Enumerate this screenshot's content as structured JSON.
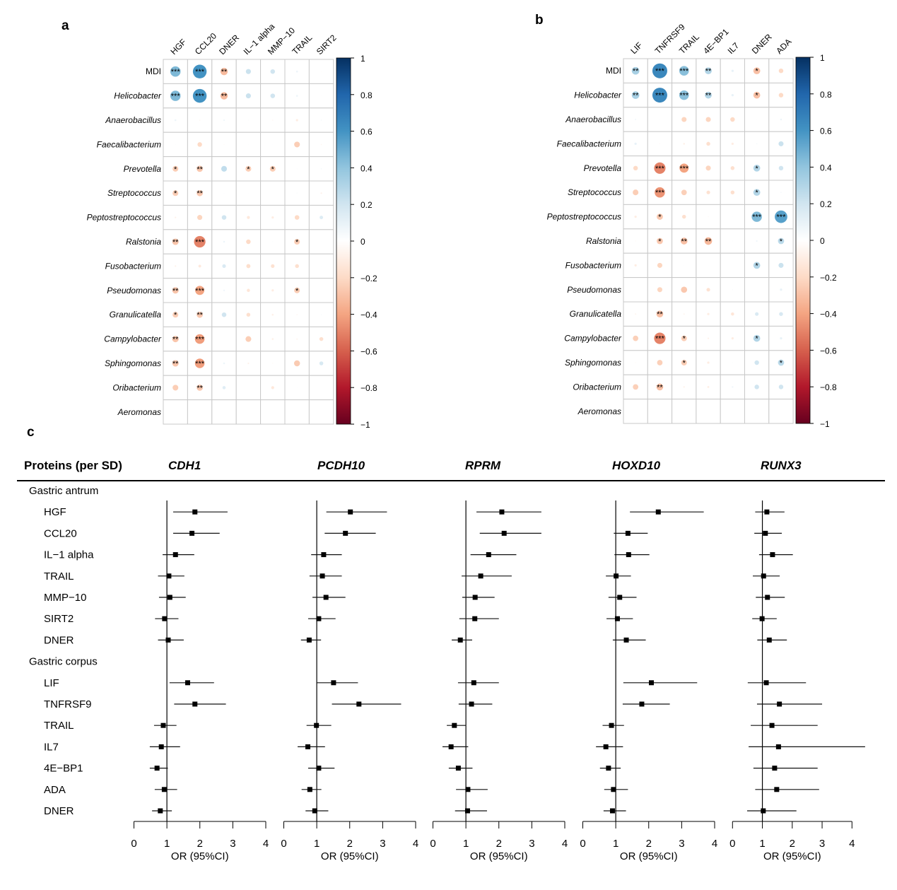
{
  "panel_labels": {
    "a": "a",
    "b": "b",
    "c": "c"
  },
  "chart_data": [
    {
      "type": "heatmap",
      "panel": "a",
      "style": "corrplot-circle",
      "columns": [
        "HGF",
        "CCL20",
        "DNER",
        "IL−1 alpha",
        "MMP−10",
        "TRAIL",
        "SIRT2"
      ],
      "rows": [
        "MDI",
        "Helicobacter",
        "Anaerobacillus",
        "Faecalibacterium",
        "Prevotella",
        "Streptococcus",
        "Peptostreptococcus",
        "Ralstonia",
        "Fusobacterium",
        "Pseudomonas",
        "Granulicatella",
        "Campylobacter",
        "Sphingomonas",
        "Oribacterium",
        "Aeromonas"
      ],
      "italic_rows": [
        false,
        true,
        true,
        true,
        true,
        true,
        true,
        true,
        true,
        true,
        true,
        true,
        true,
        true,
        true
      ],
      "values": [
        [
          0.45,
          0.6,
          -0.32,
          0.22,
          0.2,
          0.08,
          -0.03
        ],
        [
          0.45,
          0.6,
          -0.32,
          0.22,
          0.2,
          0.08,
          -0.02
        ],
        [
          0.08,
          -0.05,
          0.07,
          0.03,
          -0.05,
          -0.1,
          0.05
        ],
        [
          0.03,
          -0.2,
          -0.04,
          0.03,
          0.02,
          -0.25,
          -0.05
        ],
        [
          -0.25,
          -0.27,
          0.25,
          -0.25,
          -0.25,
          0.03,
          0.05
        ],
        [
          -0.25,
          -0.27,
          0.02,
          0.02,
          0.0,
          0.04,
          -0.07
        ],
        [
          -0.07,
          -0.22,
          0.2,
          -0.13,
          -0.1,
          -0.2,
          0.15
        ],
        [
          -0.28,
          -0.5,
          0.08,
          -0.2,
          0.03,
          -0.25,
          0.02
        ],
        [
          -0.07,
          -0.12,
          0.16,
          -0.18,
          -0.16,
          -0.17,
          0.02
        ],
        [
          -0.28,
          -0.4,
          0.07,
          -0.14,
          -0.1,
          -0.25,
          0.0
        ],
        [
          -0.25,
          -0.27,
          0.2,
          -0.17,
          -0.08,
          -0.05,
          0.04
        ],
        [
          -0.28,
          -0.42,
          0.01,
          -0.25,
          -0.08,
          -0.06,
          -0.17
        ],
        [
          -0.28,
          -0.42,
          0.08,
          -0.07,
          -0.04,
          -0.26,
          0.17
        ],
        [
          -0.25,
          -0.27,
          0.14,
          0.0,
          -0.13,
          0.02,
          0.01
        ],
        [
          0,
          0,
          0,
          0,
          0,
          0,
          0
        ]
      ],
      "significance": [
        [
          "***",
          "***",
          "**",
          "",
          "",
          "",
          ""
        ],
        [
          "***",
          "***",
          "**",
          "",
          "",
          "",
          ""
        ],
        [
          "",
          "",
          "",
          "",
          "",
          "",
          ""
        ],
        [
          "",
          "",
          "",
          "",
          "",
          "",
          ""
        ],
        [
          "*",
          "**",
          "",
          "*",
          "*",
          "",
          ""
        ],
        [
          "*",
          "**",
          "",
          "",
          "",
          "",
          ""
        ],
        [
          "",
          "",
          "",
          "",
          "",
          "",
          ""
        ],
        [
          "**",
          "***",
          "",
          "",
          "",
          "*",
          ""
        ],
        [
          "",
          "",
          "",
          "",
          "",
          "",
          ""
        ],
        [
          "**",
          "***",
          "",
          "",
          "",
          "*",
          ""
        ],
        [
          "*",
          "**",
          "",
          "",
          "",
          "",
          ""
        ],
        [
          "**",
          "***",
          "",
          "",
          "",
          "",
          ""
        ],
        [
          "**",
          "***",
          "",
          "",
          "",
          "",
          ""
        ],
        [
          "",
          "**",
          "",
          "",
          "",
          "",
          ""
        ],
        [
          "",
          "",
          "",
          "",
          "",
          "",
          ""
        ]
      ],
      "colorbar": {
        "range": [
          -1,
          1
        ],
        "ticks": [
          "1",
          "0.8",
          "0.6",
          "0.4",
          "0.2",
          "0",
          "−0.2",
          "−0.4",
          "−0.6",
          "−0.8",
          "−1"
        ],
        "tick_values": [
          1,
          0.8,
          0.6,
          0.4,
          0.2,
          0,
          -0.2,
          -0.4,
          -0.6,
          -0.8,
          -1
        ]
      }
    },
    {
      "type": "heatmap",
      "panel": "b",
      "style": "corrplot-circle",
      "columns": [
        "LIF",
        "TNFRSF9",
        "TRAIL",
        "4E−BP1",
        "IL7",
        "DNER",
        "ADA"
      ],
      "rows": [
        "MDI",
        "Helicobacter",
        "Anaerobacillus",
        "Faecalibacterium",
        "Prevotella",
        "Streptococcus",
        "Peptostreptococcus",
        "Ralstonia",
        "Fusobacterium",
        "Pseudomonas",
        "Granulicatella",
        "Campylobacter",
        "Sphingomonas",
        "Oribacterium",
        "Aeromonas"
      ],
      "italic_rows": [
        false,
        true,
        true,
        true,
        true,
        true,
        true,
        true,
        true,
        true,
        true,
        true,
        true,
        true,
        true
      ],
      "values": [
        [
          0.33,
          0.65,
          0.42,
          0.3,
          0.1,
          -0.3,
          -0.2
        ],
        [
          0.33,
          0.65,
          0.42,
          0.3,
          0.1,
          -0.3,
          -0.2
        ],
        [
          0.06,
          0.02,
          -0.22,
          -0.22,
          -0.2,
          0.02,
          0.08
        ],
        [
          0.1,
          -0.04,
          -0.08,
          -0.17,
          -0.1,
          0.05,
          0.22
        ],
        [
          -0.2,
          -0.5,
          -0.4,
          -0.22,
          -0.17,
          0.3,
          0.2
        ],
        [
          -0.25,
          -0.45,
          -0.24,
          -0.16,
          -0.17,
          0.3,
          0.05
        ],
        [
          -0.1,
          -0.27,
          -0.17,
          -0.04,
          0.02,
          0.45,
          0.55
        ],
        [
          -0.04,
          -0.27,
          -0.3,
          -0.33,
          0.03,
          0.07,
          0.27
        ],
        [
          -0.1,
          -0.22,
          0.02,
          0.02,
          0.0,
          0.3,
          0.22
        ],
        [
          0.0,
          -0.22,
          -0.27,
          -0.16,
          0.04,
          0.0,
          0.1
        ],
        [
          -0.06,
          -0.3,
          -0.06,
          -0.1,
          -0.14,
          0.16,
          0.17
        ],
        [
          -0.24,
          -0.5,
          -0.25,
          -0.07,
          -0.1,
          0.3,
          0.1
        ],
        [
          -0.04,
          -0.24,
          -0.25,
          -0.1,
          0.03,
          0.2,
          0.27
        ],
        [
          -0.24,
          -0.3,
          -0.07,
          -0.09,
          0.07,
          0.2,
          0.2
        ],
        [
          0,
          0,
          0,
          0,
          0,
          0,
          0
        ]
      ],
      "significance": [
        [
          "**",
          "***",
          "***",
          "**",
          "",
          "*",
          ""
        ],
        [
          "**",
          "***",
          "***",
          "**",
          "",
          "*",
          ""
        ],
        [
          "",
          "",
          "",
          "",
          "",
          "",
          ""
        ],
        [
          "",
          "",
          "",
          "",
          "",
          "",
          ""
        ],
        [
          "",
          "***",
          "***",
          "",
          "",
          "*",
          ""
        ],
        [
          "",
          "***",
          "",
          "",
          "",
          "*",
          ""
        ],
        [
          "",
          "*",
          "",
          "",
          "",
          "***",
          "***"
        ],
        [
          "",
          "*",
          "**",
          "**",
          "",
          "",
          "*"
        ],
        [
          "",
          "",
          "",
          "",
          "",
          "*",
          ""
        ],
        [
          "",
          "",
          "",
          "",
          "",
          "",
          ""
        ],
        [
          "",
          "**",
          "",
          "",
          "",
          "",
          ""
        ],
        [
          "",
          "***",
          "*",
          "",
          "",
          "*",
          ""
        ],
        [
          "",
          "",
          "*",
          "",
          "",
          "",
          "*"
        ],
        [
          "",
          "**",
          "",
          "",
          "",
          "",
          ""
        ],
        [
          "",
          "",
          "",
          "",
          "",
          "",
          ""
        ]
      ],
      "colorbar": {
        "range": [
          -1,
          1
        ],
        "ticks": [
          "1",
          "0.8",
          "0.6",
          "0.4",
          "0.2",
          "0",
          "−0.2",
          "−0.4",
          "−0.6",
          "−0.8",
          "−1"
        ],
        "tick_values": [
          1,
          0.8,
          0.6,
          0.4,
          0.2,
          0,
          -0.2,
          -0.4,
          -0.6,
          -0.8,
          -1
        ]
      }
    },
    {
      "type": "forest",
      "panel": "c",
      "header_label": "Proteins (per SD)",
      "xlabel": "OR (95%CI)",
      "xlim": [
        0,
        4
      ],
      "xticks": [
        0,
        1,
        2,
        3,
        4
      ],
      "reference_line": 1,
      "groups": [
        {
          "name": "Gastric antrum",
          "proteins": [
            "HGF",
            "CCL20",
            "IL−1 alpha",
            "TRAIL",
            "MMP−10",
            "SIRT2",
            "DNER"
          ]
        },
        {
          "name": "Gastric corpus",
          "proteins": [
            "LIF",
            "TNFRSF9",
            "TRAIL",
            "IL7",
            "4E−BP1",
            "ADA",
            "DNER"
          ]
        }
      ],
      "genes": [
        {
          "name": "CDH1",
          "or": [
            1.85,
            1.76,
            1.26,
            1.06,
            1.09,
            0.93,
            1.04,
            1.63,
            1.85,
            0.89,
            0.83,
            0.7,
            0.92,
            0.8
          ],
          "lo": [
            1.19,
            1.19,
            0.87,
            0.73,
            0.76,
            0.64,
            0.73,
            1.08,
            1.22,
            0.61,
            0.48,
            0.48,
            0.63,
            0.55
          ],
          "hi": [
            2.84,
            2.6,
            1.83,
            1.53,
            1.57,
            1.35,
            1.51,
            2.43,
            2.79,
            1.29,
            1.4,
            1.03,
            1.31,
            1.15
          ]
        },
        {
          "name": "PCDH10",
          "or": [
            2.02,
            1.87,
            1.21,
            1.17,
            1.28,
            1.06,
            0.77,
            1.51,
            2.28,
            0.99,
            0.73,
            1.06,
            0.79,
            0.94
          ],
          "lo": [
            1.29,
            1.24,
            0.83,
            0.78,
            0.87,
            0.74,
            0.52,
            1.01,
            1.46,
            0.69,
            0.42,
            0.74,
            0.54,
            0.66
          ],
          "hi": [
            3.13,
            2.79,
            1.76,
            1.76,
            1.87,
            1.57,
            1.13,
            2.25,
            3.56,
            1.44,
            1.25,
            1.54,
            1.14,
            1.35
          ]
        },
        {
          "name": "RPRM",
          "or": [
            2.09,
            2.16,
            1.69,
            1.45,
            1.28,
            1.27,
            0.83,
            1.24,
            1.17,
            0.65,
            0.55,
            0.77,
            1.06,
            1.05
          ],
          "lo": [
            1.32,
            1.42,
            1.14,
            0.87,
            0.89,
            0.8,
            0.57,
            0.76,
            0.78,
            0.42,
            0.29,
            0.48,
            0.7,
            0.67
          ],
          "hi": [
            3.29,
            3.29,
            2.53,
            2.39,
            1.87,
            2.0,
            1.19,
            2.0,
            1.8,
            1.0,
            1.07,
            1.2,
            1.66,
            1.64
          ]
        },
        {
          "name": "HOXD10",
          "or": [
            2.29,
            1.37,
            1.39,
            1.01,
            1.12,
            1.05,
            1.32,
            2.08,
            1.79,
            0.87,
            0.7,
            0.78,
            0.93,
            0.9
          ],
          "lo": [
            1.43,
            0.94,
            0.96,
            0.7,
            0.78,
            0.72,
            0.91,
            1.23,
            1.21,
            0.6,
            0.4,
            0.52,
            0.65,
            0.63
          ],
          "hi": [
            3.67,
            1.97,
            2.02,
            1.46,
            1.63,
            1.52,
            1.91,
            3.47,
            2.64,
            1.25,
            1.22,
            1.15,
            1.37,
            1.31
          ]
        },
        {
          "name": "RUNX3",
          "or": [
            1.15,
            1.1,
            1.34,
            1.04,
            1.17,
            0.99,
            1.23,
            1.13,
            1.57,
            1.32,
            1.54,
            1.41,
            1.48,
            1.03
          ],
          "lo": [
            0.76,
            0.73,
            0.89,
            0.68,
            0.78,
            0.66,
            0.83,
            0.51,
            0.82,
            0.61,
            0.54,
            0.7,
            0.76,
            0.49
          ],
          "hi": [
            1.74,
            1.65,
            2.02,
            1.58,
            1.75,
            1.48,
            1.82,
            2.46,
            3.0,
            2.85,
            4.44,
            2.85,
            2.9,
            2.14
          ]
        }
      ]
    }
  ]
}
